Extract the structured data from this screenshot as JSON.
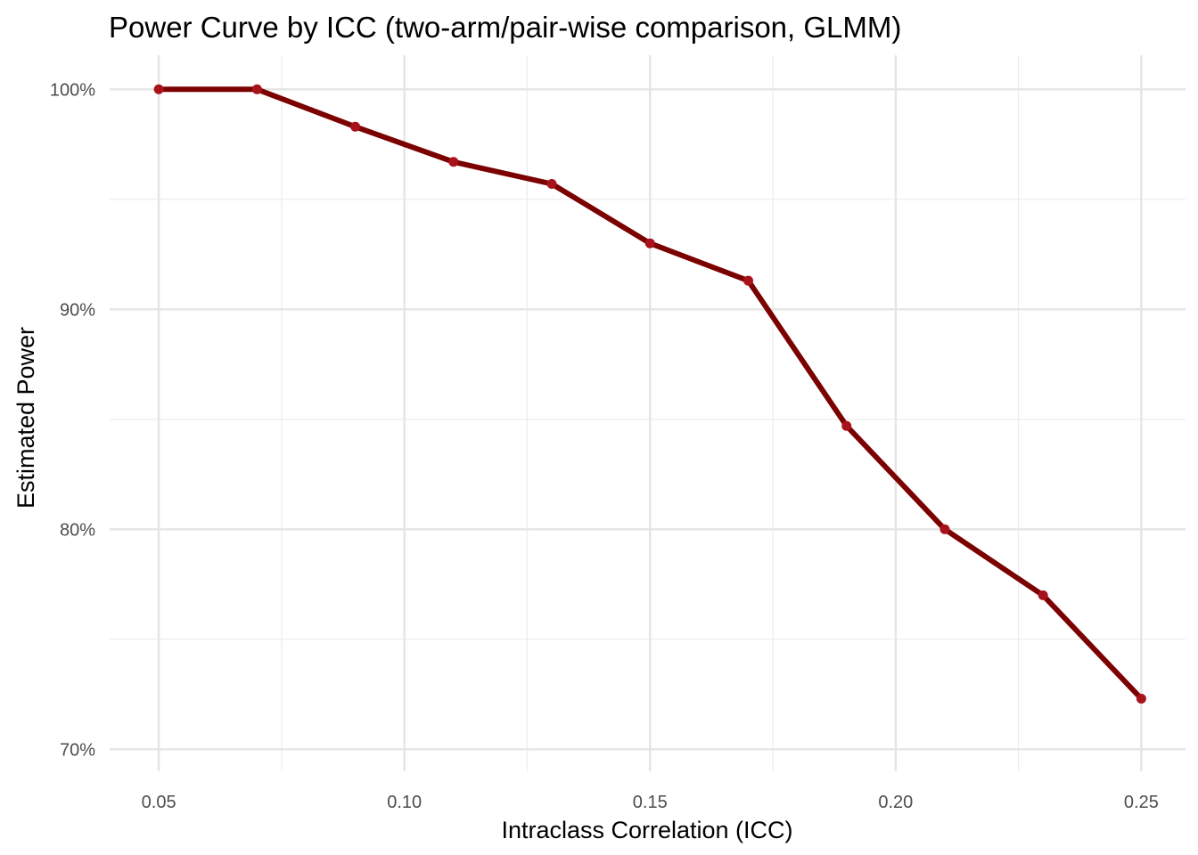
{
  "chart_data": {
    "type": "line",
    "title": "Power Curve by ICC (two-arm/pair-wise comparison, GLMM)",
    "xlabel": "Intraclass Correlation (ICC)",
    "ylabel": "Estimated Power",
    "xlim": [
      0.04,
      0.259
    ],
    "ylim": [
      0.69,
      1.0155
    ],
    "x_ticks": [
      0.05,
      0.1,
      0.15,
      0.2,
      0.25
    ],
    "x_tick_labels": [
      "0.05",
      "0.10",
      "0.15",
      "0.20",
      "0.25"
    ],
    "x_minor_ticks": [
      0.075,
      0.125,
      0.175,
      0.225
    ],
    "y_ticks": [
      0.7,
      0.8,
      0.9,
      1.0
    ],
    "y_tick_labels": [
      "70%",
      "80%",
      "90%",
      "100%"
    ],
    "y_minor_ticks": [
      0.75,
      0.85,
      0.95
    ],
    "grid": true,
    "legend": "none",
    "series": [
      {
        "x": [
          0.05,
          0.07,
          0.09,
          0.11,
          0.13,
          0.15,
          0.17,
          0.19,
          0.21,
          0.23,
          0.25
        ],
        "values": [
          1.0,
          1.0,
          0.983,
          0.967,
          0.957,
          0.93,
          0.913,
          0.847,
          0.8,
          0.77,
          0.723
        ],
        "line_color": "#7b0000",
        "point_color": "#a8131b"
      }
    ]
  }
}
